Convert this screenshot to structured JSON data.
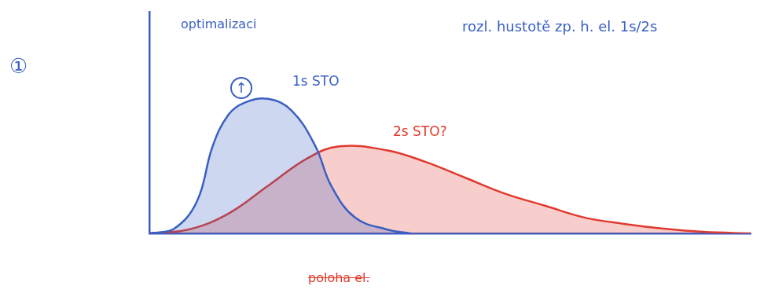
{
  "chart_data": {
    "type": "area",
    "tick_labels": false,
    "grid": false,
    "xlim": [
      0,
      7.6
    ],
    "ylim": [
      0,
      2.8
    ],
    "series": [
      {
        "color": "#3a5fc4",
        "x": [
          0,
          0.3,
          0.6,
          0.8,
          1.0,
          1.2,
          1.5,
          1.8,
          2.1,
          2.3,
          2.6,
          3.0,
          3.3
        ],
        "values": [
          0,
          0.05,
          0.4,
          1.1,
          1.5,
          1.65,
          1.7,
          1.55,
          1.1,
          0.6,
          0.2,
          0.05,
          0
        ]
      },
      {
        "color": "#e03a2e",
        "x": [
          0,
          0.5,
          1.0,
          1.5,
          2.0,
          2.4,
          3.0,
          3.5,
          4.0,
          4.5,
          5.0,
          5.5,
          6.0,
          6.5,
          7.0,
          7.6
        ],
        "values": [
          0,
          0.05,
          0.25,
          0.6,
          0.95,
          1.1,
          1.05,
          0.9,
          0.7,
          0.5,
          0.35,
          0.2,
          0.12,
          0.06,
          0.02,
          0
        ]
      }
    ],
    "annotations": [
      {
        "text": "①",
        "color": "#3a5fc4"
      },
      {
        "text": "optimalizaci",
        "color": "#3a5fc4"
      },
      {
        "text": "↑",
        "color": "#3a5fc4"
      },
      {
        "text": "1s STO",
        "color": "#3a5fc4"
      },
      {
        "text": "2s STO?",
        "color": "#e03a2e"
      },
      {
        "text": "poloha el.",
        "color": "#e03a2e"
      },
      {
        "text": "rozl. hustotě zp. h. el. 1s/2s",
        "color": "#3a5fc4"
      }
    ]
  }
}
